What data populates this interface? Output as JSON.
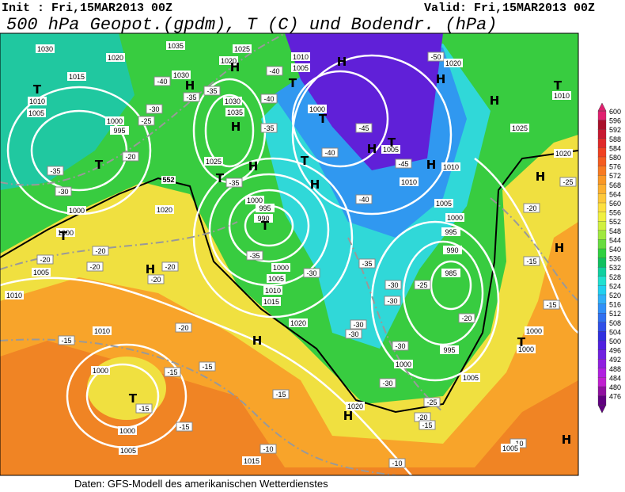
{
  "header": {
    "init": "Init : Fri,15MAR2013 00Z",
    "valid": "Valid: Fri,15MAR2013 00Z",
    "title": "500 hPa Geopot.(gpdm), T (C) und Bodendr. (hPa)"
  },
  "legend": {
    "levels": [
      600,
      596,
      592,
      588,
      584,
      580,
      576,
      572,
      568,
      564,
      560,
      556,
      552,
      548,
      544,
      540,
      536,
      532,
      528,
      524,
      520,
      516,
      512,
      508,
      504,
      500,
      496,
      492,
      488,
      484,
      480,
      476
    ],
    "colors": [
      "#e0206f",
      "#a8102a",
      "#c81830",
      "#e02828",
      "#f04020",
      "#f55c20",
      "#f87a22",
      "#fa9826",
      "#fcb030",
      "#fdc83a",
      "#fde040",
      "#f0f040",
      "#d0f040",
      "#a0e840",
      "#68dc40",
      "#30d040",
      "#10c060",
      "#10d0a0",
      "#20e0d0",
      "#20d0f0",
      "#30b0f8",
      "#3090f8",
      "#3070f0",
      "#3050e8",
      "#3030e0",
      "#5020e0",
      "#7020e0",
      "#9020e0",
      "#b020e0",
      "#c020d0",
      "#9010a0",
      "#600080"
    ]
  },
  "map_labels": {
    "centers": [
      "H",
      "H",
      "T",
      "T",
      "H",
      "H",
      "T",
      "T",
      "H",
      "T",
      "H",
      "T",
      "H",
      "H",
      "H",
      "H",
      "T",
      "H",
      "T",
      "H",
      "H",
      "T",
      "H",
      "H",
      "T",
      "H",
      "T",
      "T"
    ],
    "isobars": [
      "1030",
      "1020",
      "1035",
      "1030",
      "1015",
      "1010",
      "1005",
      "1000",
      "995",
      "1030",
      "1035",
      "1025",
      "1020",
      "1025",
      "1010",
      "1005",
      "1000",
      "1005",
      "1010",
      "1010",
      "1020",
      "1005",
      "1000",
      "995",
      "990",
      "985",
      "995",
      "1000",
      "1005",
      "1010",
      "1025",
      "1020",
      "1020",
      "1000",
      "995",
      "990",
      "1000",
      "1005",
      "1010",
      "1015",
      "1020",
      "1010",
      "1005",
      "1000",
      "1000",
      "1010",
      "1000",
      "1000",
      "1005",
      "1020",
      "1015",
      "1005",
      "1000",
      "1000"
    ],
    "isotherms": [
      "-40",
      "-35",
      "-30",
      "-25",
      "-20",
      "-35",
      "-35",
      "-30",
      "-20",
      "-20",
      "-20",
      "-20",
      "-20",
      "-20",
      "-15",
      "-15",
      "-15",
      "-15",
      "-15",
      "-15",
      "-10",
      "-10",
      "-10",
      "-40",
      "-40",
      "-35",
      "-35",
      "-40",
      "-45",
      "-45",
      "-50",
      "-40",
      "-35",
      "-30",
      "-35",
      "-25",
      "-30",
      "-30",
      "-30",
      "-30",
      "-30",
      "-25",
      "-20",
      "-15",
      "-25",
      "-20",
      "-15",
      "-20",
      "-15",
      "-30"
    ],
    "contour_552": "552"
  },
  "footer": "Daten: GFS-Modell des amerikanischen Wetterdienstes"
}
